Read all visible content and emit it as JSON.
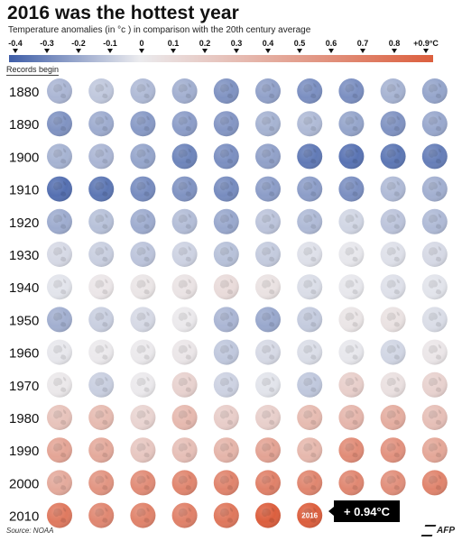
{
  "title": "2016 was the hottest year",
  "subtitle": "Temperature anomalies (in °c ) in comparison with the 20th century average",
  "records_label": "Records begin",
  "source": "Source: NOAA",
  "logo_text": "AFP",
  "callout": "+ 0.94°C",
  "highlight_year": "2016",
  "scale_labels": [
    "-0.4",
    "-0.3",
    "-0.2",
    "-0.1",
    "0",
    "0.1",
    "0.2",
    "0.3",
    "0.4",
    "0.5",
    "0.6",
    "0.7",
    "0.8",
    "+0.9°C"
  ],
  "colors": {
    "cold_max": "#3f5ea8",
    "neutral": "#ebebee",
    "warm_max": "#dc5f3e"
  },
  "chart_data": {
    "type": "heatmap",
    "title": "2016 was the hottest year",
    "subtitle": "Temperature anomalies (in °c ) in comparison with the 20th century average",
    "unit": "°C",
    "color_range": [
      -0.4,
      0.9
    ],
    "decades": [
      "1880",
      "1890",
      "1900",
      "1910",
      "1920",
      "1930",
      "1940",
      "1950",
      "1960",
      "1970",
      "1980",
      "1990",
      "2000",
      "2010"
    ],
    "values": [
      [
        -0.15,
        -0.1,
        -0.14,
        -0.17,
        -0.25,
        -0.21,
        -0.26,
        -0.26,
        -0.16,
        -0.2
      ],
      [
        -0.25,
        -0.18,
        -0.23,
        -0.22,
        -0.24,
        -0.16,
        -0.14,
        -0.2,
        -0.25,
        -0.19
      ],
      [
        -0.16,
        -0.15,
        -0.2,
        -0.29,
        -0.26,
        -0.21,
        -0.32,
        -0.34,
        -0.33,
        -0.31
      ],
      [
        -0.35,
        -0.33,
        -0.27,
        -0.25,
        -0.27,
        -0.22,
        -0.22,
        -0.26,
        -0.14,
        -0.17
      ],
      [
        -0.18,
        -0.12,
        -0.18,
        -0.13,
        -0.19,
        -0.11,
        -0.14,
        -0.06,
        -0.11,
        -0.14
      ],
      [
        -0.05,
        -0.08,
        -0.11,
        -0.07,
        -0.12,
        -0.09,
        -0.03,
        -0.01,
        -0.03,
        -0.05
      ],
      [
        -0.02,
        0.03,
        0.04,
        0.05,
        0.1,
        0.06,
        -0.04,
        -0.01,
        -0.03,
        -0.02
      ],
      [
        -0.17,
        -0.08,
        -0.05,
        0.01,
        -0.15,
        -0.19,
        -0.09,
        0.04,
        0.06,
        -0.04
      ],
      [
        -0.01,
        0.01,
        0.01,
        0.03,
        -0.1,
        -0.05,
        -0.04,
        -0.01,
        -0.06,
        0.03
      ],
      [
        0.02,
        -0.08,
        0.01,
        0.16,
        -0.07,
        -0.02,
        -0.1,
        0.18,
        0.07,
        0.16
      ],
      [
        0.26,
        0.31,
        0.15,
        0.32,
        0.19,
        0.18,
        0.31,
        0.34,
        0.4,
        0.28
      ],
      [
        0.45,
        0.42,
        0.23,
        0.28,
        0.35,
        0.46,
        0.33,
        0.61,
        0.57,
        0.44
      ],
      [
        0.42,
        0.55,
        0.61,
        0.65,
        0.66,
        0.68,
        0.65,
        0.64,
        0.59,
        0.66
      ],
      [
        0.73,
        0.64,
        0.67,
        0.68,
        0.74,
        0.9,
        0.94
      ]
    ]
  }
}
